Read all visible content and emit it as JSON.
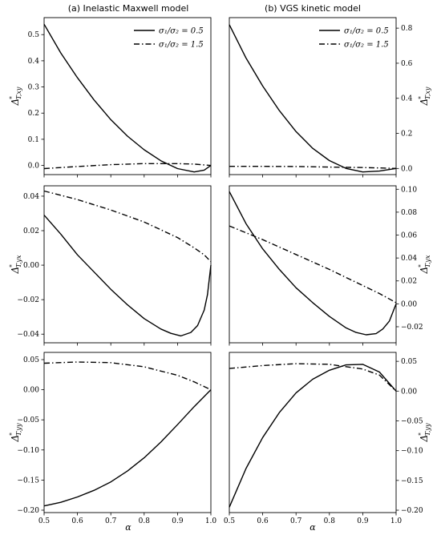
{
  "figure": {
    "col_titles": [
      "(a) Inelastic Maxwell model",
      "(b) VGS kinetic model"
    ],
    "xlabel": "α",
    "legend": [
      {
        "label": "σ₁/σ₂ = 0.5",
        "style": "solid"
      },
      {
        "label": "σ₁/σ₂ = 1.5",
        "style": "dashdot"
      }
    ]
  },
  "chart_data": [
    {
      "type": "line",
      "title": "(a) Inelastic Maxwell model",
      "ylabel": "Δ*T,xy",
      "xlim": [
        0.5,
        1.0
      ],
      "ylim": [
        -0.035,
        0.565
      ],
      "xticks": [
        0.5,
        0.6,
        0.7,
        0.8,
        0.9,
        1.0
      ],
      "yticks": [
        0.0,
        0.1,
        0.2,
        0.3,
        0.4,
        0.5
      ],
      "ytick_labels": [
        "0.0",
        "0.1",
        "0.2",
        "0.3",
        "0.4",
        "0.5"
      ],
      "series": [
        {
          "name": "σ₁/σ₂ = 0.5",
          "style": "solid",
          "x": [
            0.5,
            0.55,
            0.6,
            0.65,
            0.7,
            0.75,
            0.8,
            0.85,
            0.9,
            0.95,
            0.98,
            1.0
          ],
          "y": [
            0.54,
            0.43,
            0.335,
            0.25,
            0.175,
            0.112,
            0.06,
            0.018,
            -0.012,
            -0.025,
            -0.018,
            0.0
          ]
        },
        {
          "name": "σ₁/σ₂ = 1.5",
          "style": "dashdot",
          "x": [
            0.5,
            0.6,
            0.7,
            0.8,
            0.9,
            0.95,
            1.0
          ],
          "y": [
            -0.012,
            -0.004,
            0.003,
            0.007,
            0.007,
            0.005,
            0.0
          ]
        }
      ]
    },
    {
      "type": "line",
      "title": "(b) VGS kinetic model",
      "ylabel": "Δ*T,xy",
      "xlim": [
        0.5,
        1.0
      ],
      "ylim": [
        -0.035,
        0.86
      ],
      "xticks": [
        0.5,
        0.6,
        0.7,
        0.8,
        0.9,
        1.0
      ],
      "yticks": [
        0.0,
        0.2,
        0.4,
        0.6,
        0.8
      ],
      "ytick_labels": [
        "0.0",
        "0.2",
        "0.4",
        "0.6",
        "0.8"
      ],
      "series": [
        {
          "name": "σ₁/σ₂ = 0.5",
          "style": "solid",
          "x": [
            0.5,
            0.55,
            0.6,
            0.65,
            0.7,
            0.75,
            0.8,
            0.85,
            0.9,
            0.95,
            1.0
          ],
          "y": [
            0.82,
            0.63,
            0.47,
            0.33,
            0.21,
            0.115,
            0.045,
            0.0,
            -0.02,
            -0.015,
            0.0
          ]
        },
        {
          "name": "σ₁/σ₂ = 1.5",
          "style": "dashdot",
          "x": [
            0.5,
            0.6,
            0.7,
            0.8,
            0.9,
            0.95,
            1.0
          ],
          "y": [
            0.012,
            0.012,
            0.011,
            0.008,
            0.005,
            0.003,
            0.0
          ]
        }
      ]
    },
    {
      "type": "line",
      "ylabel": "Δ*T,yx",
      "xlim": [
        0.5,
        1.0
      ],
      "ylim": [
        -0.045,
        0.046
      ],
      "xticks": [
        0.5,
        0.6,
        0.7,
        0.8,
        0.9,
        1.0
      ],
      "yticks": [
        -0.04,
        -0.02,
        0.0,
        0.02,
        0.04
      ],
      "ytick_labels": [
        "−0.04",
        "−0.02",
        "0.00",
        "0.02",
        "0.04"
      ],
      "series": [
        {
          "name": "σ₁/σ₂ = 0.5",
          "style": "solid",
          "x": [
            0.5,
            0.55,
            0.6,
            0.65,
            0.7,
            0.75,
            0.8,
            0.85,
            0.88,
            0.91,
            0.94,
            0.96,
            0.98,
            0.99,
            1.0
          ],
          "y": [
            0.029,
            0.018,
            0.006,
            -0.004,
            -0.014,
            -0.023,
            -0.031,
            -0.037,
            -0.0395,
            -0.041,
            -0.039,
            -0.035,
            -0.026,
            -0.017,
            0.0
          ]
        },
        {
          "name": "σ₁/σ₂ = 1.5",
          "style": "dashdot",
          "x": [
            0.5,
            0.6,
            0.7,
            0.8,
            0.9,
            0.95,
            0.98,
            1.0
          ],
          "y": [
            0.043,
            0.038,
            0.032,
            0.025,
            0.016,
            0.01,
            0.006,
            0.002
          ]
        }
      ]
    },
    {
      "type": "line",
      "ylabel": "Δ*T,yx",
      "xlim": [
        0.5,
        1.0
      ],
      "ylim": [
        -0.034,
        0.103
      ],
      "xticks": [
        0.5,
        0.6,
        0.7,
        0.8,
        0.9,
        1.0
      ],
      "yticks": [
        -0.02,
        0.0,
        0.02,
        0.04,
        0.06,
        0.08,
        0.1
      ],
      "ytick_labels": [
        "−0.02",
        "0.00",
        "0.02",
        "0.04",
        "0.06",
        "0.08",
        "0.10"
      ],
      "series": [
        {
          "name": "σ₁/σ₂ = 0.5",
          "style": "solid",
          "x": [
            0.5,
            0.55,
            0.6,
            0.65,
            0.7,
            0.75,
            0.8,
            0.85,
            0.88,
            0.91,
            0.94,
            0.96,
            0.98,
            1.0
          ],
          "y": [
            0.098,
            0.07,
            0.048,
            0.03,
            0.014,
            0.001,
            -0.011,
            -0.021,
            -0.025,
            -0.027,
            -0.026,
            -0.022,
            -0.015,
            0.0
          ]
        },
        {
          "name": "σ₁/σ₂ = 1.5",
          "style": "dashdot",
          "x": [
            0.5,
            0.6,
            0.7,
            0.8,
            0.9,
            0.95,
            1.0
          ],
          "y": [
            0.068,
            0.056,
            0.043,
            0.03,
            0.016,
            0.009,
            0.001
          ]
        }
      ]
    },
    {
      "type": "line",
      "ylabel": "Δ*T,yy",
      "xlim": [
        0.5,
        1.0
      ],
      "ylim": [
        -0.204,
        0.062
      ],
      "xticks": [
        0.5,
        0.6,
        0.7,
        0.8,
        0.9,
        1.0
      ],
      "xtick_labels": [
        "0.5",
        "0.6",
        "0.7",
        "0.8",
        "0.9",
        "1.0"
      ],
      "yticks": [
        -0.2,
        -0.15,
        -0.1,
        -0.05,
        0.0,
        0.05
      ],
      "ytick_labels": [
        "−0.20",
        "−0.15",
        "−0.10",
        "−0.05",
        "0.00",
        "0.05"
      ],
      "series": [
        {
          "name": "σ₁/σ₂ = 0.5",
          "style": "solid",
          "x": [
            0.5,
            0.55,
            0.6,
            0.65,
            0.7,
            0.75,
            0.8,
            0.85,
            0.9,
            0.95,
            1.0
          ],
          "y": [
            -0.193,
            -0.187,
            -0.178,
            -0.167,
            -0.153,
            -0.135,
            -0.113,
            -0.087,
            -0.058,
            -0.028,
            0.0
          ]
        },
        {
          "name": "σ₁/σ₂ = 1.5",
          "style": "dashdot",
          "x": [
            0.5,
            0.6,
            0.7,
            0.8,
            0.9,
            0.95,
            1.0
          ],
          "y": [
            0.044,
            0.046,
            0.045,
            0.038,
            0.024,
            0.013,
            0.0
          ]
        }
      ]
    },
    {
      "type": "line",
      "ylabel": "Δ*T,yy",
      "xlim": [
        0.5,
        1.0
      ],
      "ylim": [
        -0.204,
        0.065
      ],
      "xticks": [
        0.5,
        0.6,
        0.7,
        0.8,
        0.9,
        1.0
      ],
      "xtick_labels": [
        "0.5",
        "0.6",
        "0.7",
        "0.8",
        "0.9",
        "1.0"
      ],
      "yticks": [
        -0.2,
        -0.15,
        -0.1,
        -0.05,
        0.0,
        0.05
      ],
      "ytick_labels": [
        "−0.20",
        "−0.15",
        "−0.10",
        "−0.05",
        "0.00",
        "0.05"
      ],
      "series": [
        {
          "name": "σ₁/σ₂ = 0.5",
          "style": "solid",
          "x": [
            0.5,
            0.55,
            0.6,
            0.65,
            0.7,
            0.75,
            0.8,
            0.85,
            0.9,
            0.95,
            1.0
          ],
          "y": [
            -0.195,
            -0.13,
            -0.078,
            -0.036,
            -0.003,
            0.02,
            0.035,
            0.044,
            0.045,
            0.032,
            0.0
          ]
        },
        {
          "name": "σ₁/σ₂ = 1.5",
          "style": "dashdot",
          "x": [
            0.5,
            0.6,
            0.7,
            0.8,
            0.9,
            0.95,
            1.0
          ],
          "y": [
            0.038,
            0.043,
            0.046,
            0.045,
            0.037,
            0.027,
            0.0
          ]
        }
      ]
    }
  ]
}
